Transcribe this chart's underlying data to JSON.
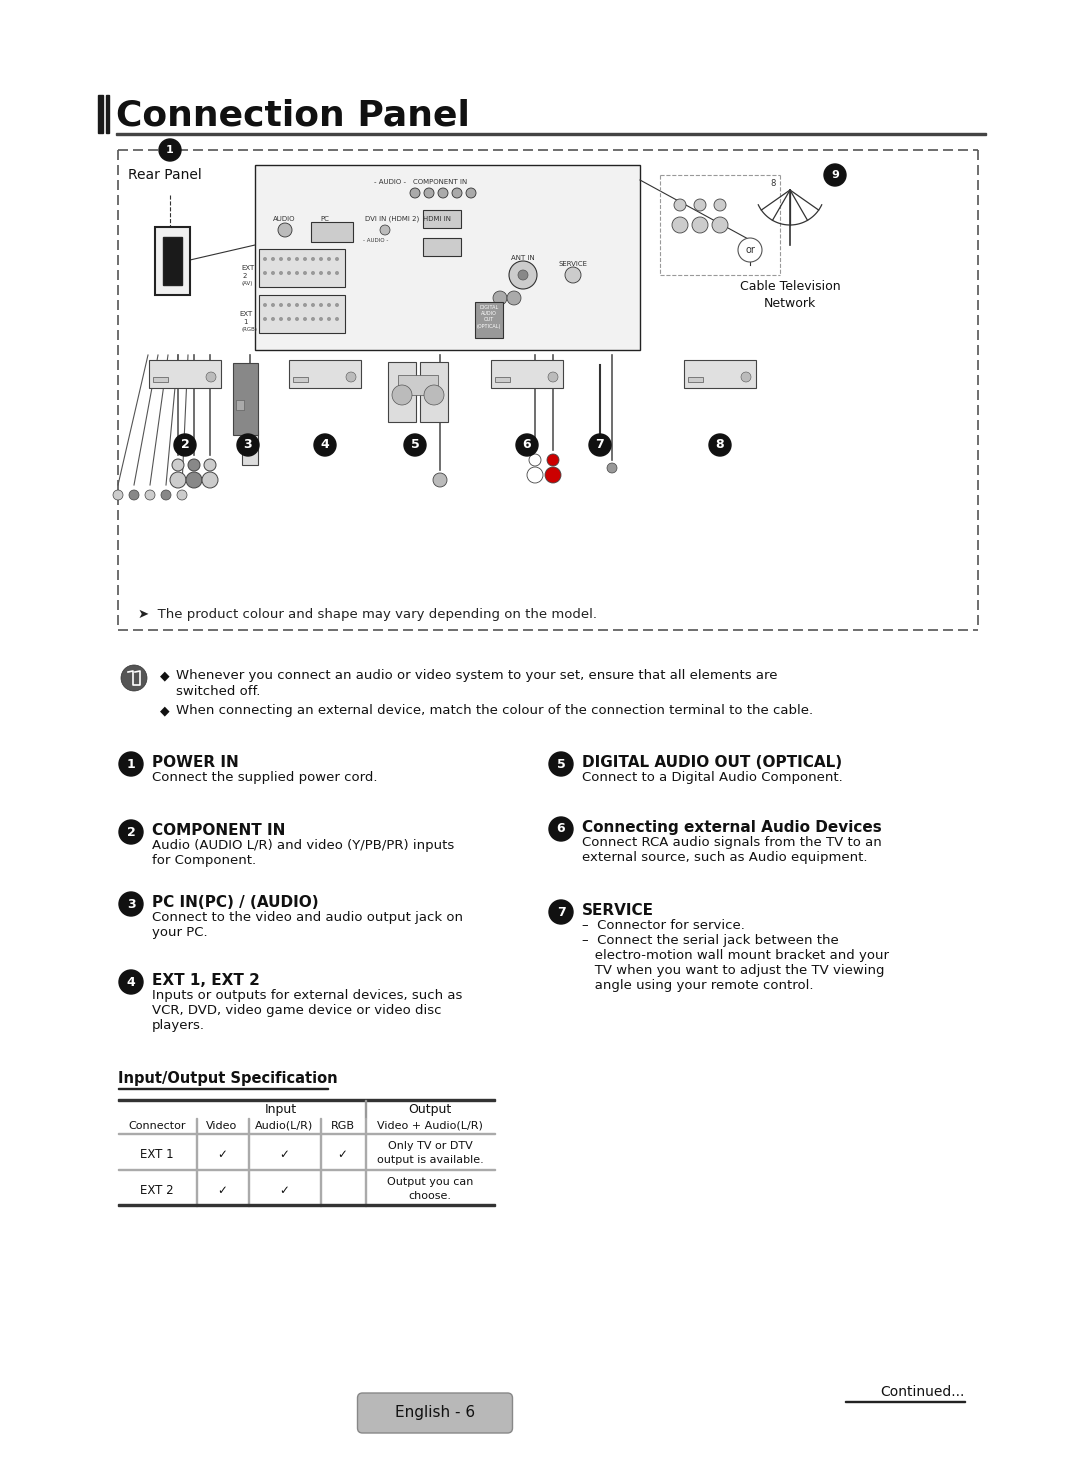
{
  "title": "Connection Panel",
  "bg_color": "#ffffff",
  "title_font_size": 26,
  "rear_panel_label": "Rear Panel",
  "note_line1": "Whenever you connect an audio or video system to your set, ensure that all elements are",
  "note_line1b": "switched off.",
  "note_line2": "When connecting an external device, match the colour of the connection terminal to the cable.",
  "items_left": [
    {
      "num": "1",
      "title": "POWER IN",
      "desc": "Connect the supplied power cord."
    },
    {
      "num": "2",
      "title": "COMPONENT IN",
      "desc": "Audio (AUDIO L/R) and video (Y/PB/PR) inputs\nfor Component."
    },
    {
      "num": "3",
      "title": "PC IN(PC) / (AUDIO)",
      "desc": "Connect to the video and audio output jack on\nyour PC."
    },
    {
      "num": "4",
      "title": "EXT 1, EXT 2",
      "desc": "Inputs or outputs for external devices, such as\nVCR, DVD, video game device or video disc\nplayers."
    }
  ],
  "items_right": [
    {
      "num": "5",
      "title": "DIGITAL AUDIO OUT (OPTICAL)",
      "desc": "Connect to a Digital Audio Component."
    },
    {
      "num": "6",
      "title": "Connecting external Audio Devices",
      "desc": "Connect RCA audio signals from the TV to an\nexternal source, such as Audio equipment."
    },
    {
      "num": "7",
      "title": "SERVICE",
      "desc": "–  Connector for service.\n–  Connect the serial jack between the\n   electro-motion wall mount bracket and your\n   TV when you want to adjust the TV viewing\n   angle using your remote control."
    }
  ],
  "table_title": "Input/Output Specification",
  "table_headers_sub": [
    "Connector",
    "Video",
    "Audio(L/R)",
    "RGB",
    "Video + Audio(L/R)"
  ],
  "table_rows": [
    [
      "EXT 1",
      "✓",
      "✓",
      "✓",
      "Only TV or DTV\noutput is available."
    ],
    [
      "EXT 2",
      "✓",
      "✓",
      "",
      "Output you can\nchoose."
    ]
  ],
  "footer_continued": "Continued...",
  "footer_page": "English - 6",
  "diagram_note": "The product colour and shape may vary depending on the model."
}
